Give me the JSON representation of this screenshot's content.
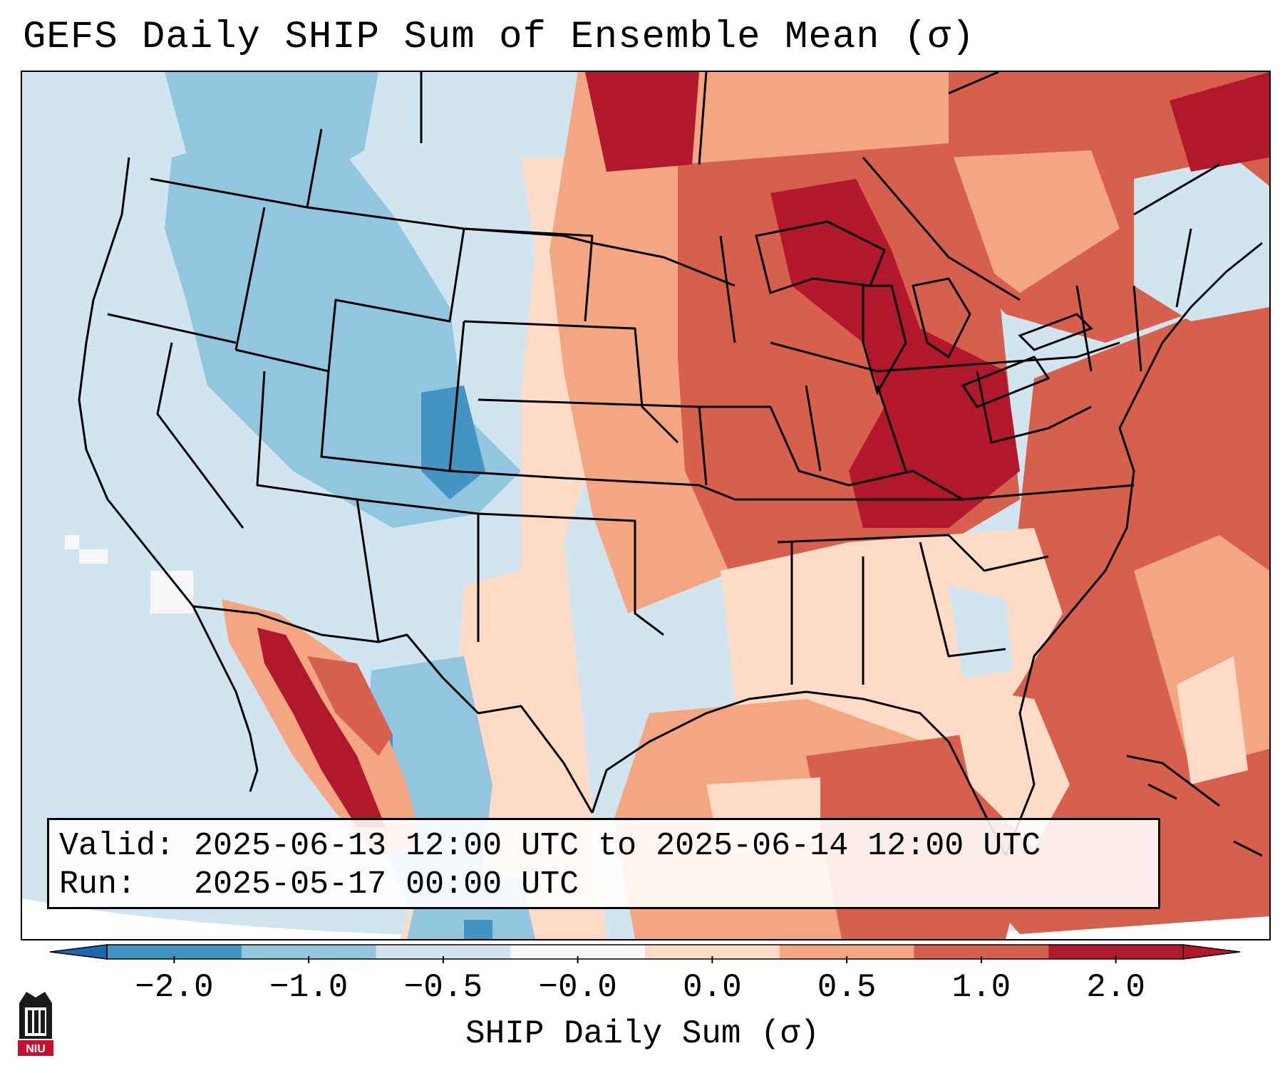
{
  "title": "GEFS Daily SHIP Sum of Ensemble Mean (σ)",
  "map": {
    "region": "Contiguous United States",
    "variable": "SHIP Daily Sum",
    "units": "σ"
  },
  "info_box": {
    "valid_label": "Valid:",
    "valid_value": "2025-06-13 12:00 UTC to 2025-06-14 12:00 UTC",
    "run_label": "Run:",
    "run_value": "2025-05-17 00:00 UTC"
  },
  "colorbar": {
    "label": "SHIP Daily Sum (σ)",
    "tick_labels": [
      "−2.0",
      "−1.0",
      "−0.5",
      "−0.0",
      "0.0",
      "0.5",
      "1.0",
      "2.0"
    ],
    "colors": [
      "#4393c3",
      "#92c5de",
      "#d1e5f0",
      "#f7f7f7",
      "#fddbc7",
      "#f4a582",
      "#d6604d",
      "#b2182b"
    ],
    "extend": "both"
  },
  "logo": {
    "text": "NIU",
    "icon": "niu-logo-icon"
  }
}
